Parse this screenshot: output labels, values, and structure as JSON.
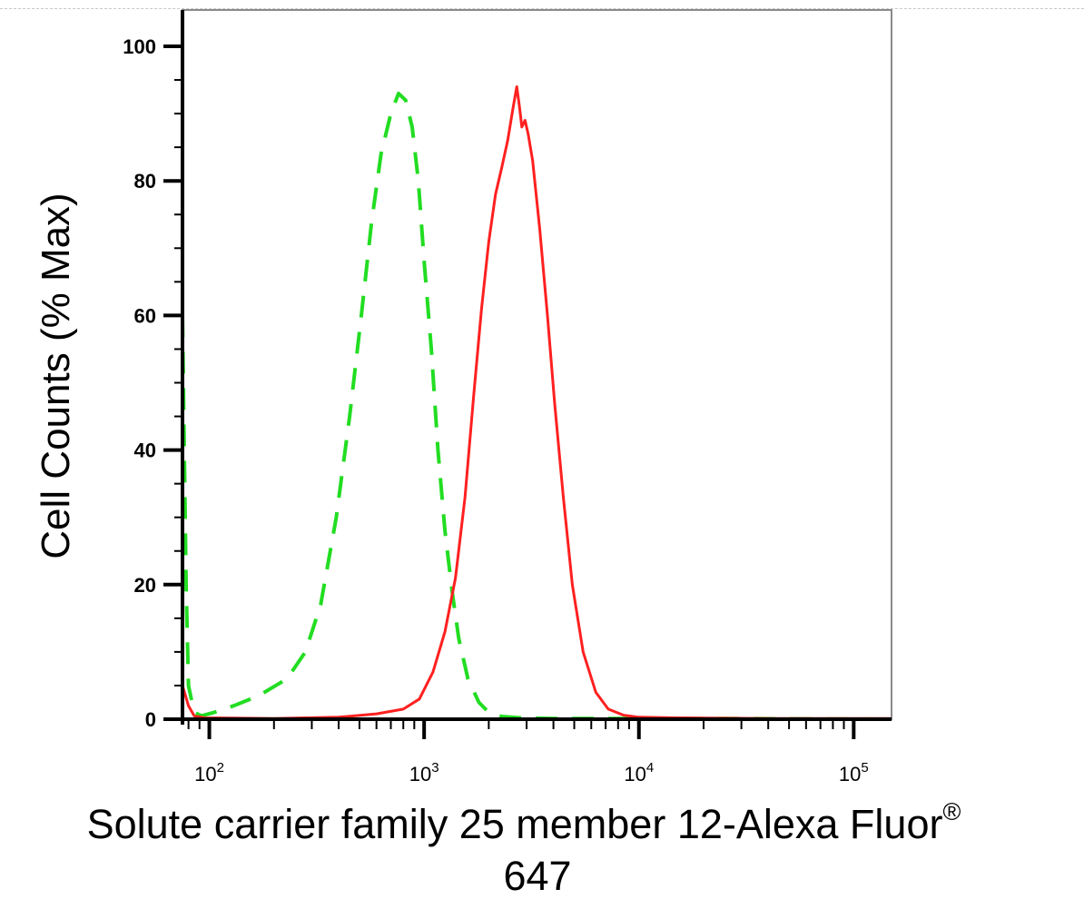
{
  "chart_data": {
    "type": "line",
    "ylabel": "Cell Counts (% Max)",
    "xlabel_main": "Solute carrier family 25 member 12-Alexa Fluor",
    "xlabel_sup": "®",
    "xlabel_line2": "647",
    "xscale": "log",
    "xlim": [
      75,
      150000
    ],
    "ylim": [
      0,
      100
    ],
    "grid": false,
    "yticks": [
      {
        "value": 0,
        "label": "0"
      },
      {
        "value": 20,
        "label": "20"
      },
      {
        "value": 40,
        "label": "40"
      },
      {
        "value": 60,
        "label": "60"
      },
      {
        "value": 80,
        "label": "80"
      },
      {
        "value": 100,
        "label": "100"
      }
    ],
    "xticks": [
      {
        "value": 100,
        "base": "10",
        "exp": "2"
      },
      {
        "value": 1000,
        "base": "10",
        "exp": "3"
      },
      {
        "value": 10000,
        "base": "10",
        "exp": "4"
      },
      {
        "value": 100000,
        "base": "10",
        "exp": "5"
      }
    ],
    "series": [
      {
        "color": "#22dd22",
        "style": "dashed",
        "points": [
          [
            75,
            60
          ],
          [
            78,
            20
          ],
          [
            80,
            5
          ],
          [
            85,
            1
          ],
          [
            92,
            0.5
          ],
          [
            105,
            1
          ],
          [
            130,
            2
          ],
          [
            170,
            3.5
          ],
          [
            230,
            6
          ],
          [
            280,
            10
          ],
          [
            330,
            17
          ],
          [
            390,
            30
          ],
          [
            450,
            45
          ],
          [
            510,
            60
          ],
          [
            570,
            74
          ],
          [
            630,
            84
          ],
          [
            700,
            90
          ],
          [
            760,
            93
          ],
          [
            820,
            92
          ],
          [
            880,
            88
          ],
          [
            940,
            80
          ],
          [
            1000,
            68
          ],
          [
            1080,
            55
          ],
          [
            1160,
            40
          ],
          [
            1250,
            28
          ],
          [
            1350,
            19
          ],
          [
            1450,
            12
          ],
          [
            1600,
            6
          ],
          [
            1800,
            2.5
          ],
          [
            2000,
            1
          ],
          [
            2300,
            0.4
          ],
          [
            2800,
            0.2
          ],
          [
            4000,
            0.1
          ],
          [
            10000,
            0.1
          ],
          [
            30000,
            0.1
          ],
          [
            150000,
            0
          ]
        ]
      },
      {
        "color": "#ff2020",
        "style": "solid",
        "points": [
          [
            75,
            5
          ],
          [
            80,
            2
          ],
          [
            85,
            0.5
          ],
          [
            95,
            0.2
          ],
          [
            200,
            0.1
          ],
          [
            400,
            0.3
          ],
          [
            600,
            0.8
          ],
          [
            800,
            1.5
          ],
          [
            950,
            3
          ],
          [
            1100,
            7
          ],
          [
            1250,
            13
          ],
          [
            1400,
            21
          ],
          [
            1550,
            33
          ],
          [
            1700,
            48
          ],
          [
            1850,
            61
          ],
          [
            2000,
            71
          ],
          [
            2150,
            78
          ],
          [
            2300,
            82
          ],
          [
            2450,
            86
          ],
          [
            2600,
            91
          ],
          [
            2700,
            94
          ],
          [
            2780,
            91
          ],
          [
            2850,
            88
          ],
          [
            2950,
            89
          ],
          [
            3050,
            87
          ],
          [
            3200,
            83
          ],
          [
            3450,
            73
          ],
          [
            3750,
            60
          ],
          [
            4050,
            47
          ],
          [
            4450,
            33
          ],
          [
            4900,
            20
          ],
          [
            5500,
            10
          ],
          [
            6300,
            4
          ],
          [
            7200,
            1.5
          ],
          [
            8500,
            0.6
          ],
          [
            10000,
            0.3
          ],
          [
            15000,
            0.2
          ],
          [
            40000,
            0.1
          ],
          [
            150000,
            0.1
          ]
        ]
      }
    ]
  }
}
